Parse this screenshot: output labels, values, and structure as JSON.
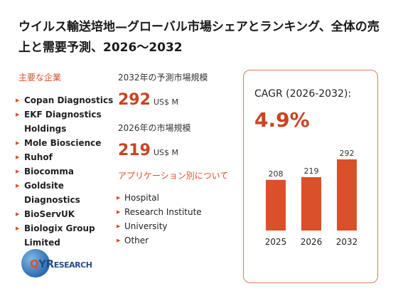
{
  "title": "ウイルス輸送培地—グローバル市場シェアとランキング、全体の売上と需要予測、2026〜2032",
  "vendors": {
    "label": "主要な企業",
    "items": [
      "Copan Diagnostics",
      "EKF Diagnostics Holdings",
      "Mole Bioscience",
      "Ruhof",
      "Biocomma",
      "Goldsite Diagnostics",
      "BioServUK",
      "Biologix Group Limited"
    ]
  },
  "projection": {
    "label": "2032年の予測市場規模",
    "value": "292",
    "unit": "US$ M"
  },
  "base": {
    "label": "2026年の市場規模",
    "value": "219",
    "unit": "US$ M"
  },
  "applications": {
    "label": "アプリケーション別について",
    "items": [
      "Hospital",
      "Research Institute",
      "University",
      "Other"
    ]
  },
  "cagr": {
    "label": "CAGR (2026-2032):",
    "value": "4.9%"
  },
  "logo": {
    "q": "Q",
    "yr": "YR",
    "research": "ESEARCH"
  },
  "colors": {
    "accent": "#d9502a",
    "bar": "#d9502a",
    "value_text": "#c94420"
  },
  "chart_data": {
    "type": "bar",
    "categories": [
      "2025",
      "2026",
      "2032"
    ],
    "values": [
      208,
      219,
      292
    ],
    "ylim": [
      0,
      292
    ]
  }
}
